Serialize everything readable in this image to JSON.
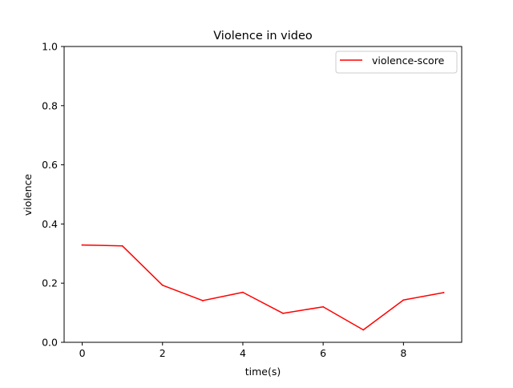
{
  "chart_data": {
    "type": "line",
    "title": "Violence in video",
    "xlabel": "time(s)",
    "ylabel": "violence",
    "xlim": [
      -0.45,
      9.45
    ],
    "ylim": [
      0.0,
      1.0
    ],
    "xticks": [
      0,
      2,
      4,
      6,
      8
    ],
    "xtick_labels": [
      "0",
      "2",
      "4",
      "6",
      "8"
    ],
    "yticks": [
      0.0,
      0.2,
      0.4,
      0.6,
      0.8,
      1.0
    ],
    "ytick_labels": [
      "0.0",
      "0.2",
      "0.4",
      "0.6",
      "0.8",
      "1.0"
    ],
    "grid": false,
    "legend": "top-right",
    "series": [
      {
        "name": "violence-score",
        "color": "#ff0000",
        "x": [
          0,
          1,
          2,
          3,
          4,
          5,
          6,
          7,
          8,
          9
        ],
        "y": [
          0.329,
          0.326,
          0.193,
          0.141,
          0.169,
          0.098,
          0.12,
          0.042,
          0.143,
          0.168
        ]
      }
    ]
  }
}
